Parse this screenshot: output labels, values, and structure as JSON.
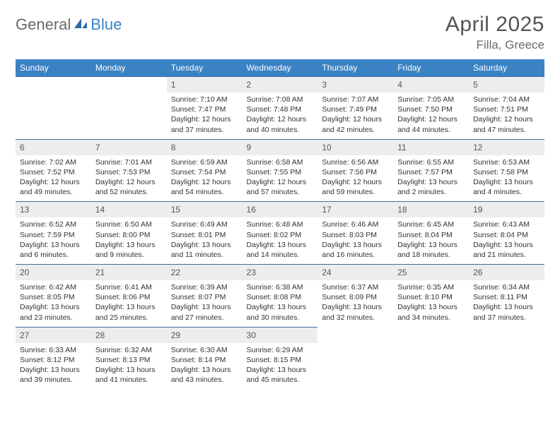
{
  "brand": {
    "word1": "General",
    "word2": "Blue"
  },
  "title": "April 2025",
  "location": "Filla, Greece",
  "colors": {
    "header_bg": "#3b82c4",
    "header_text": "#ffffff",
    "cell_border": "#3b6fa0",
    "daynum_bg": "#ededed",
    "body_text": "#333333",
    "muted_text": "#6a6a6a",
    "page_bg": "#ffffff"
  },
  "typography": {
    "title_fontsize_pt": 30,
    "location_fontsize_pt": 17,
    "weekday_fontsize_pt": 12,
    "daynum_fontsize_pt": 12,
    "body_fontsize_pt": 10.5,
    "font_family": "Arial"
  },
  "weekdays": [
    "Sunday",
    "Monday",
    "Tuesday",
    "Wednesday",
    "Thursday",
    "Friday",
    "Saturday"
  ],
  "grid": {
    "rows": 5,
    "cols": 7,
    "leading_blanks": 2,
    "trailing_blanks": 3
  },
  "days": [
    {
      "n": 1,
      "sunrise": "Sunrise: 7:10 AM",
      "sunset": "Sunset: 7:47 PM",
      "dl1": "Daylight: 12 hours",
      "dl2": "and 37 minutes."
    },
    {
      "n": 2,
      "sunrise": "Sunrise: 7:08 AM",
      "sunset": "Sunset: 7:48 PM",
      "dl1": "Daylight: 12 hours",
      "dl2": "and 40 minutes."
    },
    {
      "n": 3,
      "sunrise": "Sunrise: 7:07 AM",
      "sunset": "Sunset: 7:49 PM",
      "dl1": "Daylight: 12 hours",
      "dl2": "and 42 minutes."
    },
    {
      "n": 4,
      "sunrise": "Sunrise: 7:05 AM",
      "sunset": "Sunset: 7:50 PM",
      "dl1": "Daylight: 12 hours",
      "dl2": "and 44 minutes."
    },
    {
      "n": 5,
      "sunrise": "Sunrise: 7:04 AM",
      "sunset": "Sunset: 7:51 PM",
      "dl1": "Daylight: 12 hours",
      "dl2": "and 47 minutes."
    },
    {
      "n": 6,
      "sunrise": "Sunrise: 7:02 AM",
      "sunset": "Sunset: 7:52 PM",
      "dl1": "Daylight: 12 hours",
      "dl2": "and 49 minutes."
    },
    {
      "n": 7,
      "sunrise": "Sunrise: 7:01 AM",
      "sunset": "Sunset: 7:53 PM",
      "dl1": "Daylight: 12 hours",
      "dl2": "and 52 minutes."
    },
    {
      "n": 8,
      "sunrise": "Sunrise: 6:59 AM",
      "sunset": "Sunset: 7:54 PM",
      "dl1": "Daylight: 12 hours",
      "dl2": "and 54 minutes."
    },
    {
      "n": 9,
      "sunrise": "Sunrise: 6:58 AM",
      "sunset": "Sunset: 7:55 PM",
      "dl1": "Daylight: 12 hours",
      "dl2": "and 57 minutes."
    },
    {
      "n": 10,
      "sunrise": "Sunrise: 6:56 AM",
      "sunset": "Sunset: 7:56 PM",
      "dl1": "Daylight: 12 hours",
      "dl2": "and 59 minutes."
    },
    {
      "n": 11,
      "sunrise": "Sunrise: 6:55 AM",
      "sunset": "Sunset: 7:57 PM",
      "dl1": "Daylight: 13 hours",
      "dl2": "and 2 minutes."
    },
    {
      "n": 12,
      "sunrise": "Sunrise: 6:53 AM",
      "sunset": "Sunset: 7:58 PM",
      "dl1": "Daylight: 13 hours",
      "dl2": "and 4 minutes."
    },
    {
      "n": 13,
      "sunrise": "Sunrise: 6:52 AM",
      "sunset": "Sunset: 7:59 PM",
      "dl1": "Daylight: 13 hours",
      "dl2": "and 6 minutes."
    },
    {
      "n": 14,
      "sunrise": "Sunrise: 6:50 AM",
      "sunset": "Sunset: 8:00 PM",
      "dl1": "Daylight: 13 hours",
      "dl2": "and 9 minutes."
    },
    {
      "n": 15,
      "sunrise": "Sunrise: 6:49 AM",
      "sunset": "Sunset: 8:01 PM",
      "dl1": "Daylight: 13 hours",
      "dl2": "and 11 minutes."
    },
    {
      "n": 16,
      "sunrise": "Sunrise: 6:48 AM",
      "sunset": "Sunset: 8:02 PM",
      "dl1": "Daylight: 13 hours",
      "dl2": "and 14 minutes."
    },
    {
      "n": 17,
      "sunrise": "Sunrise: 6:46 AM",
      "sunset": "Sunset: 8:03 PM",
      "dl1": "Daylight: 13 hours",
      "dl2": "and 16 minutes."
    },
    {
      "n": 18,
      "sunrise": "Sunrise: 6:45 AM",
      "sunset": "Sunset: 8:04 PM",
      "dl1": "Daylight: 13 hours",
      "dl2": "and 18 minutes."
    },
    {
      "n": 19,
      "sunrise": "Sunrise: 6:43 AM",
      "sunset": "Sunset: 8:04 PM",
      "dl1": "Daylight: 13 hours",
      "dl2": "and 21 minutes."
    },
    {
      "n": 20,
      "sunrise": "Sunrise: 6:42 AM",
      "sunset": "Sunset: 8:05 PM",
      "dl1": "Daylight: 13 hours",
      "dl2": "and 23 minutes."
    },
    {
      "n": 21,
      "sunrise": "Sunrise: 6:41 AM",
      "sunset": "Sunset: 8:06 PM",
      "dl1": "Daylight: 13 hours",
      "dl2": "and 25 minutes."
    },
    {
      "n": 22,
      "sunrise": "Sunrise: 6:39 AM",
      "sunset": "Sunset: 8:07 PM",
      "dl1": "Daylight: 13 hours",
      "dl2": "and 27 minutes."
    },
    {
      "n": 23,
      "sunrise": "Sunrise: 6:38 AM",
      "sunset": "Sunset: 8:08 PM",
      "dl1": "Daylight: 13 hours",
      "dl2": "and 30 minutes."
    },
    {
      "n": 24,
      "sunrise": "Sunrise: 6:37 AM",
      "sunset": "Sunset: 8:09 PM",
      "dl1": "Daylight: 13 hours",
      "dl2": "and 32 minutes."
    },
    {
      "n": 25,
      "sunrise": "Sunrise: 6:35 AM",
      "sunset": "Sunset: 8:10 PM",
      "dl1": "Daylight: 13 hours",
      "dl2": "and 34 minutes."
    },
    {
      "n": 26,
      "sunrise": "Sunrise: 6:34 AM",
      "sunset": "Sunset: 8:11 PM",
      "dl1": "Daylight: 13 hours",
      "dl2": "and 37 minutes."
    },
    {
      "n": 27,
      "sunrise": "Sunrise: 6:33 AM",
      "sunset": "Sunset: 8:12 PM",
      "dl1": "Daylight: 13 hours",
      "dl2": "and 39 minutes."
    },
    {
      "n": 28,
      "sunrise": "Sunrise: 6:32 AM",
      "sunset": "Sunset: 8:13 PM",
      "dl1": "Daylight: 13 hours",
      "dl2": "and 41 minutes."
    },
    {
      "n": 29,
      "sunrise": "Sunrise: 6:30 AM",
      "sunset": "Sunset: 8:14 PM",
      "dl1": "Daylight: 13 hours",
      "dl2": "and 43 minutes."
    },
    {
      "n": 30,
      "sunrise": "Sunrise: 6:29 AM",
      "sunset": "Sunset: 8:15 PM",
      "dl1": "Daylight: 13 hours",
      "dl2": "and 45 minutes."
    }
  ]
}
